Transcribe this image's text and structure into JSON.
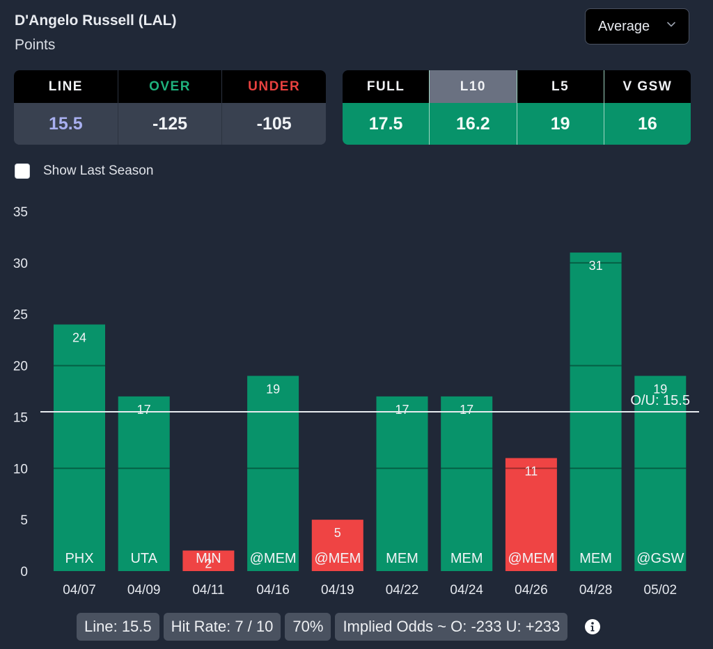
{
  "header": {
    "player": "D'Angelo Russell (LAL)",
    "stat": "Points",
    "dropdown": {
      "selected": "Average",
      "icon": "chevron-down-icon"
    }
  },
  "odds_table": {
    "columns": [
      {
        "label": "LINE",
        "value": "15.5",
        "label_color": "#f2f4f7",
        "value_color": "#a9b0f0"
      },
      {
        "label": "OVER",
        "value": "-125",
        "label_color": "#1fb27d",
        "value_color": "#f1f3f6"
      },
      {
        "label": "UNDER",
        "value": "-105",
        "label_color": "#e8413f",
        "value_color": "#f1f3f6"
      }
    ]
  },
  "averages_table": {
    "active": "L10",
    "columns": [
      {
        "label": "FULL",
        "value": "17.5"
      },
      {
        "label": "L10",
        "value": "16.2"
      },
      {
        "label": "L5",
        "value": "19"
      },
      {
        "label": "V GSW",
        "value": "16"
      }
    ]
  },
  "show_last_season": {
    "label": "Show Last Season",
    "checked": false
  },
  "colors": {
    "over": "#08936a",
    "under": "#ef4444",
    "background": "#202837"
  },
  "chart_data": {
    "type": "bar",
    "title": "",
    "xlabel": "",
    "ylabel": "",
    "ylim": [
      0,
      35
    ],
    "yticks": [
      0,
      5,
      10,
      15,
      20,
      25,
      30,
      35
    ],
    "gridlines": [
      10,
      20,
      30
    ],
    "categories": [
      "04/07",
      "04/09",
      "04/11",
      "04/16",
      "04/19",
      "04/22",
      "04/24",
      "04/26",
      "04/28",
      "05/02"
    ],
    "opponents": [
      "PHX",
      "UTA",
      "MIN",
      "@MEM",
      "@MEM",
      "MEM",
      "MEM",
      "@MEM",
      "MEM",
      "@GSW"
    ],
    "values": [
      24,
      17,
      2,
      19,
      5,
      17,
      17,
      11,
      31,
      19
    ],
    "reference_line": {
      "value": 15.5,
      "label": "O/U: 15.5"
    }
  },
  "footer": {
    "line": "Line: 15.5",
    "hit_rate": "Hit Rate: 7 / 10",
    "hit_pct": "70%",
    "implied_odds": "Implied Odds ~ O: -233 U: +233",
    "info_icon": "info-icon"
  }
}
